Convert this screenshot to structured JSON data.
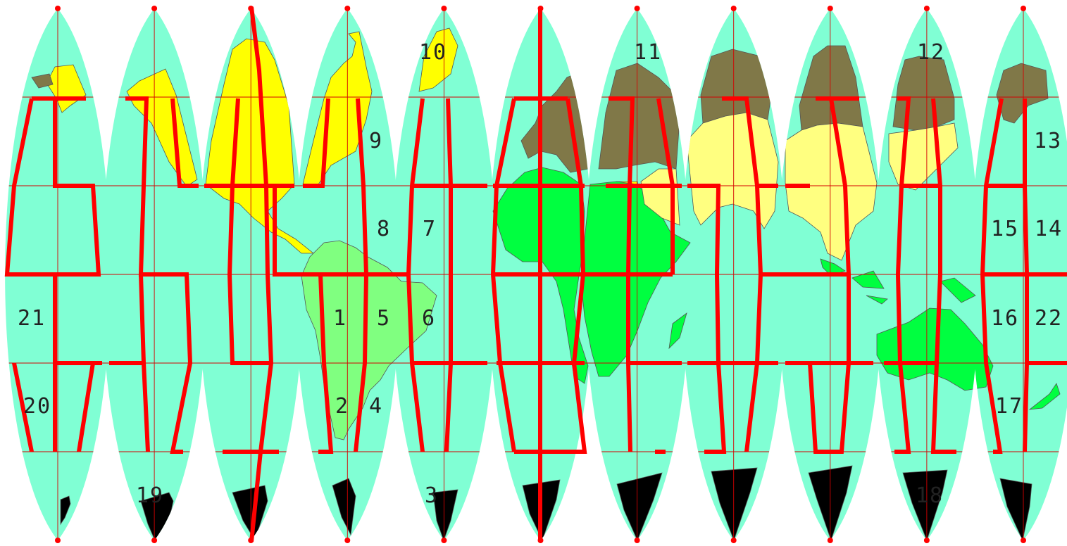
{
  "map": {
    "colors": {
      "ocean": "#80ffd4",
      "north_america": "#ffff00",
      "south_america": "#80ff80",
      "africa_australia": "#00ff40",
      "europe_russia": "#807848",
      "asia": "#ffff80",
      "antarctica": "#e6e6e6",
      "gridline": "#d40000",
      "route": "#ff0000"
    },
    "gore_count": 11,
    "labels": [
      "1",
      "2",
      "3",
      "4",
      "5",
      "6",
      "7",
      "8",
      "9",
      "10",
      "11",
      "12",
      "13",
      "14",
      "15",
      "16",
      "17",
      "18",
      "19",
      "20",
      "21",
      "22"
    ]
  }
}
